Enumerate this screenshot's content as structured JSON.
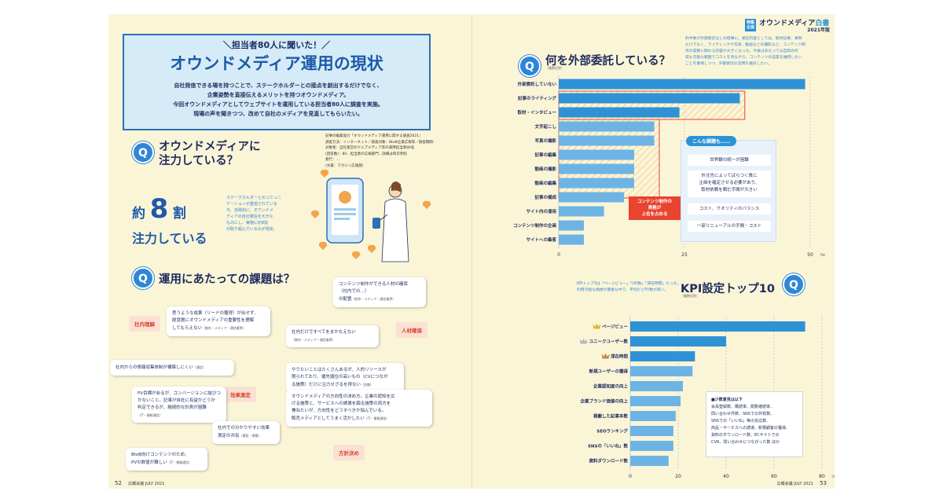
{
  "left_page": {
    "title_box": {
      "kicker": "＼担当者80人に聞いた！／",
      "title": "オウンドメディア運用の現状",
      "lead": [
        "自社発信できる場を持つことで、ステークホルダーとの接点を創出するだけでなく、",
        "企業姿勢を直接伝えるメリットを持つオウンドメディア。",
        "今回オウンドメディアとしてウェブサイトを運用している担当者80人に調査を実施。",
        "現場の声を聞きつつ、改めて自社のメディアを見直してもらいたい。"
      ]
    },
    "survey_notes": [
      "記事の編集協力「オウンドメディア運用に関する調査2021」",
      "調査方法：インターネット／調査対象：BtoB企業広報等／調査期間：",
      "対象者：自社運営のウェブメディア等の運用担当者80名",
      "(回答数)：80…担当者の広報部門…詳細は目次参照",
      "発行：…",
      "(文責：マガジン広報部)"
    ],
    "q1": {
      "mark": "Q",
      "title_line1": "オウンドメディアに",
      "title_line2": "注力している？",
      "answer_prefix": "約",
      "answer_number": "8",
      "answer_suffix": "割",
      "answer_sub": "注力している",
      "side_text": [
        "ステークホルダーとのコミュニ",
        "ケーションが重視されている",
        "今、自発的に、オウンドメ",
        "ディアの自社発信を大きな",
        "ものにし、実施に約8割",
        "が取り組んでいるのが現状。"
      ]
    },
    "q2": {
      "mark": "Q",
      "title": "運用にあたっての課題は？",
      "tags": {
        "internal": "社内理解",
        "talent": "人材確保",
        "effect": "効果測定",
        "policy": "方針決め"
      },
      "bubbles": [
        {
          "text": [
            "思うような成果（リードの獲得）が出せず、",
            "経営層にオウンドメディアの重要性を理解",
            "してもらえない"
          ],
          "source": "（制作・メディア・通信業界）"
        },
        {
          "text": [
            "社内からの情報収集体制が構築しにくい"
          ],
          "source": "（通信）"
        },
        {
          "text": [
            "コンテンツ制作ができる人材の確保",
            "（社内での…）",
            "の配置"
          ],
          "source": "（制作・メディア・通信業界）"
        },
        {
          "text": [
            "社内だけですべてをまかなえない"
          ],
          "source": "（制作・メディア・通信業界）"
        },
        {
          "text": [
            "やりたいことはたくさんあるが、人的リソースが",
            "限られており、優先順位の高いもの（CVにつなが",
            "る施策）だけに注力せざるを得ない"
          ],
          "source": "（金融）"
        },
        {
          "text": [
            "PV目標があるが、コンバージョンに結びつ",
            "かないこと。記事が自社に有益かどうか",
            "判定できるが、継続的な計測が困難"
          ],
          "source": "（IT・情報通信）"
        },
        {
          "text": [
            "社内での分かりやすい効果",
            "測定の共有"
          ],
          "source": "（建設・建築）"
        },
        {
          "text": [
            "BtoB向けコンテンツのため、",
            "PVの数値が難しい"
          ],
          "source": "（IT・情報通信）"
        },
        {
          "text": [
            "オウンドメディアの方向性の決め方。企業の認知を広",
            "げる施策と、サービスへの誘導を図る施策の両方を",
            "兼ねたいが、方向性をどうすべきか悩んでいる。",
            "販売メディアとしてうまく活かしたい"
          ],
          "source": "（IT・情報通信）"
        }
      ]
    },
    "page_number": "52",
    "footer_text": "広報会議 JULY 2021"
  },
  "right_page": {
    "header": {
      "tag_line1": "特集",
      "tag_line2": "企画",
      "title": "オウンドメディア",
      "title_accent": "白書",
      "year": "2021年版"
    },
    "q3": {
      "mark": "Q",
      "title": "何を外部委託している？",
      "sub": "（複数回答）",
      "description": [
        "約半数が外部委託なしの結果に。委託内容としては、取材記事、事例",
        "だけでなく、ライティングや写真、動画などの撮影など、コンテンツ制",
        "作の実務に関わる内容が大きくなった。今後はあたっては自前の作",
        "成も可能な範囲でコストを見ながら、コンテンツの品質を維持したい",
        "ことを重視しつつ、外部委託の活用を検討したい。"
      ],
      "callout": [
        "コンテンツ制作の",
        "実務が",
        "上位を占める"
      ],
      "issues_title": "こんな課題も……",
      "issues": [
        "世界観の統一が困難",
        "外注先によってばらつく質に\n企画を確定させる必要があり、\n取材依頼を頼む手間が大きい",
        "コスト、クオリティのバランス",
        "一部リニューアルの手間・コスト"
      ],
      "axis_unit": "（%）"
    },
    "q4": {
      "mark": "Q",
      "title": "KPI設定トップ10",
      "sub": "（複数回答）",
      "description": [
        "KPIトップ3は「ページビュー」「UU数」「滞在時間」だった。",
        "利用可能な指標が豊富な中で、平均だとPV数が高い。"
      ],
      "minor_title": "■少数意見は以下",
      "minor_items": [
        "会員登録数、購読率、閲覧継続率、",
        "問い合わせ件数、SNSでの共有数、",
        "SNSでの「いいね」等の反応数、",
        "商品・サービスへの誘導、新規顧客の獲得、",
        "資料のダウンロード数、ECサイトでの",
        "CVR、問い合わせにつながった数 ほか"
      ],
      "axis_unit": "（%）"
    },
    "page_number": "53",
    "footer_text": "広報会議 JULY 2021"
  },
  "chart_data": [
    {
      "type": "bar",
      "orientation": "horizontal",
      "title": "何を外部委託している？",
      "categories": [
        "外部委託していない",
        "記事のライティング",
        "取材・インタビュー",
        "文字起こし",
        "写真の撮影",
        "記事の編集",
        "動画の撮影",
        "動画の編集",
        "記事の構成",
        "サイト内の運用",
        "コンテンツ制作の企画",
        "サイトへの集客"
      ],
      "values": [
        49,
        36,
        24,
        19,
        19,
        15,
        15,
        15,
        13,
        9,
        5,
        5
      ],
      "xlim": [
        0,
        50
      ],
      "xticks": [
        "0",
        "25",
        "50"
      ],
      "xlabel": "（%）",
      "bar_colors": [
        "#2e93d6",
        "#2e93d6",
        "#2e93d6",
        "#6db4e4",
        "#6db4e4",
        "#6db4e4",
        "#6db4e4",
        "#6db4e4",
        "#6db4e4",
        "#6db4e4",
        "#6db4e4",
        "#6db4e4"
      ]
    },
    {
      "type": "bar",
      "orientation": "horizontal",
      "title": "KPI設定トップ10",
      "categories": [
        "ページビュー",
        "ユニークユーザー数",
        "滞在時間",
        "新規ユーザーの獲得",
        "企業認知度の向上",
        "企業ブランド価値の向上",
        "掲載した記事本数",
        "SEOランキング",
        "SNSの「いいね」数",
        "資料ダウンロード数"
      ],
      "values": [
        73,
        40,
        27,
        26,
        22,
        21,
        19,
        18,
        18,
        16
      ],
      "xlim": [
        0,
        80
      ],
      "xticks": [
        "0",
        "20",
        "40",
        "60",
        "80"
      ],
      "xlabel": "（%）",
      "ranks": [
        "1",
        "2",
        "3"
      ],
      "bar_colors": [
        "#2e93d6",
        "#2e93d6",
        "#2e93d6",
        "#6db4e4",
        "#6db4e4",
        "#6db4e4",
        "#6db4e4",
        "#6db4e4",
        "#6db4e4",
        "#6db4e4"
      ]
    }
  ]
}
